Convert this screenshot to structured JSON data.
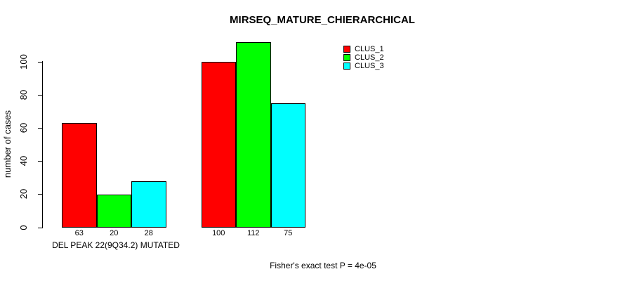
{
  "chart_data": {
    "type": "bar",
    "title": "MIRSEQ_MATURE_CHIERARCHICAL",
    "ylabel": "number of cases",
    "xlabel": "",
    "ylim": [
      0,
      100
    ],
    "yticks": [
      0,
      20,
      40,
      60,
      80,
      100
    ],
    "grid": false,
    "legend_position": "top-right",
    "bar_value_labels": true,
    "categories": [
      "DEL PEAK 22(9Q34.2) MUTATED",
      ""
    ],
    "series": [
      {
        "name": "CLUS_1",
        "color": "#ff0000",
        "values": [
          63,
          100
        ]
      },
      {
        "name": "CLUS_2",
        "color": "#00ff00",
        "values": [
          20,
          112
        ]
      },
      {
        "name": "CLUS_3",
        "color": "#00ffff",
        "values": [
          28,
          75
        ]
      }
    ],
    "annotation": "Fisher's exact test P = 4e-05"
  }
}
